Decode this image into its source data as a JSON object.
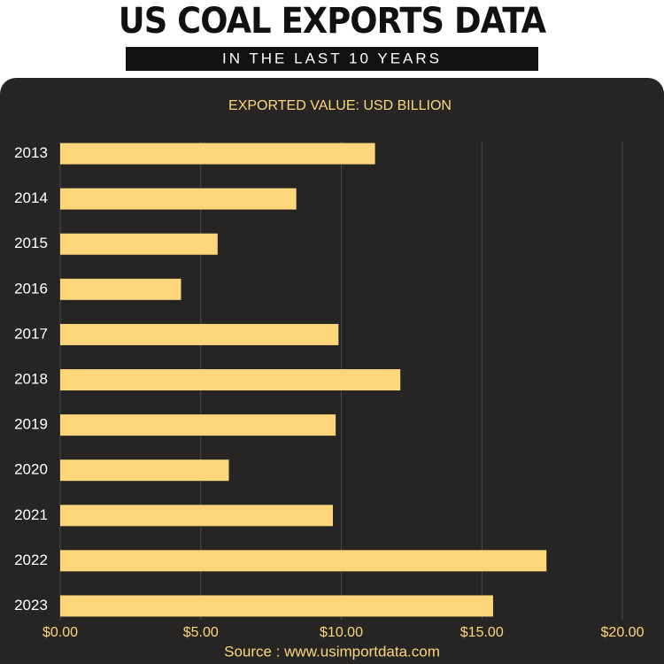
{
  "chart_data": {
    "type": "bar",
    "orientation": "horizontal",
    "title": "US COAL EXPORTS DATA",
    "subtitle": "IN THE LAST 10 YEARS",
    "axis_label": "EXPORTED VALUE: USD BILLION",
    "source": "Source : www.usimportdata.com",
    "categories": [
      "2013",
      "2014",
      "2015",
      "2016",
      "2017",
      "2018",
      "2019",
      "2020",
      "2021",
      "2022",
      "2023"
    ],
    "values": [
      11.2,
      8.4,
      5.6,
      4.3,
      9.9,
      12.1,
      9.8,
      6.0,
      9.7,
      17.3,
      15.4
    ],
    "color": "#fdd67b",
    "xlim": [
      0,
      20
    ],
    "xticks": [
      {
        "value": 0,
        "label": "$0.00"
      },
      {
        "value": 5,
        "label": "$5.00"
      },
      {
        "value": 10,
        "label": "$10.00"
      },
      {
        "value": 15,
        "label": "$15.00"
      },
      {
        "value": 20,
        "label": "$20.00"
      }
    ],
    "grid": true
  }
}
